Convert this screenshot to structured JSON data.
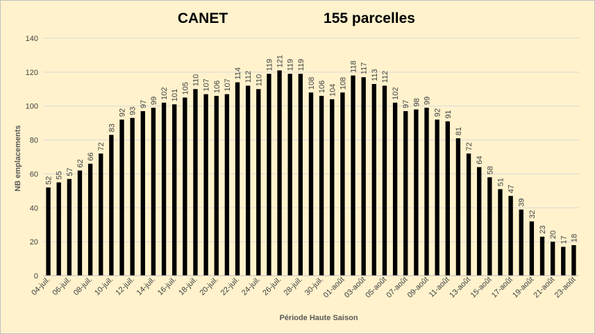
{
  "chart_data": {
    "type": "bar",
    "title": "CANET",
    "subtitle": "155 parcelles",
    "xlabel": "Période Haute Saison",
    "ylabel": "NB emplacements",
    "ylim": [
      0,
      140
    ],
    "yticks": [
      0,
      20,
      40,
      60,
      80,
      100,
      120,
      140
    ],
    "grid": true,
    "legend": "none",
    "bar_color": "#000000",
    "categories": [
      "04-juil.",
      "05-juil.",
      "06-juil.",
      "07-juil.",
      "08-juil.",
      "09-juil.",
      "10-juil.",
      "11-juil.",
      "12-juil.",
      "13-juil.",
      "14-juil.",
      "15-juil.",
      "16-juil.",
      "17-juil.",
      "18-juil.",
      "19-juil.",
      "20-juil.",
      "21-juil.",
      "22-juil.",
      "23-juil.",
      "24-juil.",
      "25-juil.",
      "26-juil.",
      "27-juil.",
      "28-juil.",
      "29-juil.",
      "30-juil.",
      "31-juil.",
      "01-août",
      "02-août",
      "03-août",
      "04-août",
      "05-août",
      "06-août",
      "07-août",
      "08-août",
      "09-août",
      "10-août",
      "11-août",
      "12-août",
      "13-août",
      "14-août",
      "15-août",
      "16-août",
      "17-août",
      "18-août",
      "19-août",
      "20-août",
      "21-août",
      "22-août",
      "23-août"
    ],
    "shown_tick_labels": [
      "04-juil.",
      "06-juil.",
      "08-juil.",
      "10-juil.",
      "12-juil.",
      "14-juil.",
      "16-juil.",
      "18-juil.",
      "20-juil.",
      "22-juil.",
      "24-juil.",
      "26-juil.",
      "28-juil.",
      "30-juil.",
      "01-août",
      "03-août",
      "05-août",
      "07-août",
      "09-août",
      "11-août",
      "13-août",
      "15-août",
      "17-août",
      "19-août",
      "21-août",
      "23-août"
    ],
    "values": [
      52,
      55,
      57,
      62,
      66,
      72,
      83,
      92,
      93,
      97,
      99,
      102,
      101,
      105,
      110,
      107,
      106,
      107,
      114,
      112,
      110,
      119,
      121,
      119,
      119,
      108,
      106,
      104,
      108,
      118,
      117,
      113,
      112,
      102,
      97,
      98,
      99,
      92,
      91,
      81,
      72,
      64,
      58,
      51,
      47,
      39,
      32,
      23,
      20,
      17,
      18
    ]
  }
}
